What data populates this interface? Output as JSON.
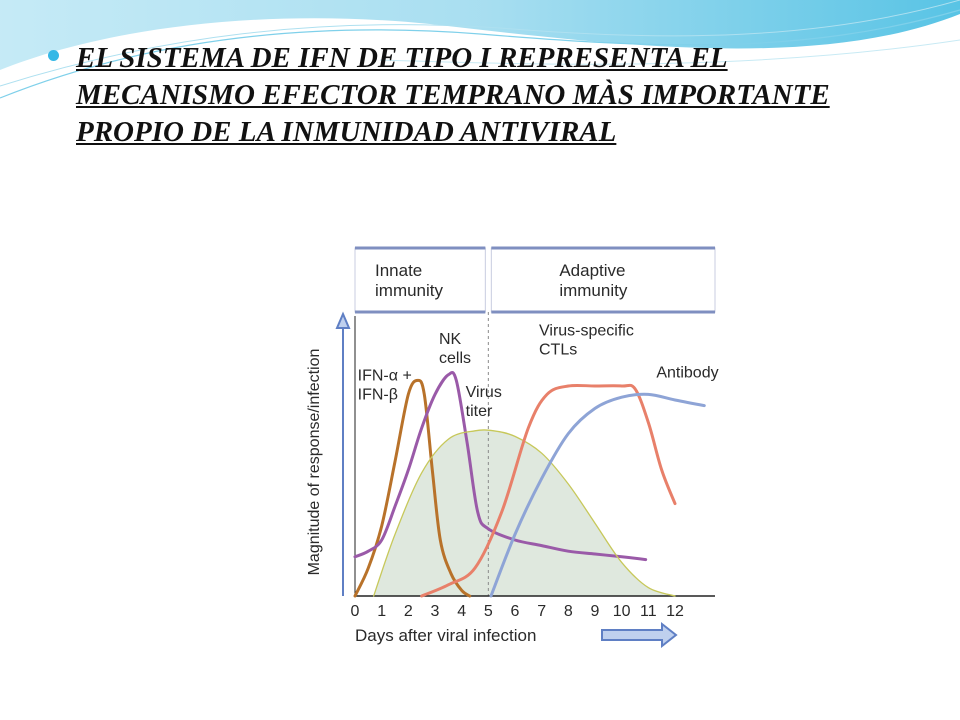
{
  "slide": {
    "bullet_text": "EL SISTEMA DE IFN DE TIPO I  REPRESENTA EL MECANISMO EFECTOR TEMPRANO MÀS IMPORTANTE PROPIO DE LA INMUNIDAD ANTIVIRAL"
  },
  "colors": {
    "ifn": "#b8722a",
    "nk": "#9a5aa8",
    "virus_fill": "#dfe8de",
    "virus_line": "#c7c85a",
    "ctl": "#e8806a",
    "antibody": "#8ea4d6",
    "header_box": "#7f8fc0",
    "axis_arrow": "#5f7fc4",
    "text": "#2a2a2a"
  },
  "chart_data": {
    "type": "line",
    "title": "",
    "xlabel": "Days after viral infection",
    "ylabel": "Magnitude of response/infection",
    "xlim": [
      0,
      13.5
    ],
    "ylim": [
      0,
      100
    ],
    "xticks": [
      "0",
      "1",
      "2",
      "3",
      "4",
      "5",
      "6",
      "7",
      "8",
      "9",
      "10",
      "11",
      "12"
    ],
    "phases": [
      {
        "name": "Innate immunity",
        "line1": "Innate",
        "line2": "immunity",
        "x_from": 0,
        "x_to": 5
      },
      {
        "name": "Adaptive immunity",
        "line1": "Adaptive",
        "line2": "immunity",
        "x_from": 5,
        "x_to": 13.5
      }
    ],
    "divider_x": 5,
    "series": [
      {
        "key": "ifn",
        "label_lines": [
          "IFN-α +",
          "IFN-β"
        ],
        "label_x": 0.1,
        "label_y": 77,
        "points": [
          [
            0,
            0
          ],
          [
            0.5,
            10
          ],
          [
            1,
            25
          ],
          [
            1.5,
            48
          ],
          [
            2,
            72
          ],
          [
            2.35,
            77
          ],
          [
            2.6,
            72
          ],
          [
            2.9,
            45
          ],
          [
            3.2,
            20
          ],
          [
            3.6,
            8
          ],
          [
            4,
            2
          ],
          [
            4.3,
            0
          ]
        ]
      },
      {
        "key": "nk",
        "label_lines": [
          "NK",
          "cells"
        ],
        "label_x": 3.15,
        "label_y": 90,
        "points": [
          [
            0,
            14
          ],
          [
            0.5,
            16
          ],
          [
            1,
            20
          ],
          [
            1.5,
            32
          ],
          [
            2,
            45
          ],
          [
            2.5,
            60
          ],
          [
            3,
            72
          ],
          [
            3.5,
            79
          ],
          [
            3.8,
            77
          ],
          [
            4.2,
            55
          ],
          [
            4.6,
            30
          ],
          [
            5,
            24
          ],
          [
            6,
            20
          ],
          [
            7,
            18
          ],
          [
            8,
            16
          ],
          [
            9,
            15
          ],
          [
            10,
            14
          ],
          [
            10.9,
            13
          ]
        ]
      },
      {
        "key": "virus",
        "label_lines": [
          "Virus",
          "titer"
        ],
        "label_x": 4.15,
        "label_y": 71,
        "fill": true,
        "points": [
          [
            0.7,
            0
          ],
          [
            1.5,
            22
          ],
          [
            2.5,
            44
          ],
          [
            3.5,
            56
          ],
          [
            4.5,
            59
          ],
          [
            5.2,
            59
          ],
          [
            6,
            57
          ],
          [
            7,
            51
          ],
          [
            8,
            40
          ],
          [
            9,
            26
          ],
          [
            10,
            12
          ],
          [
            11,
            3
          ],
          [
            12,
            0
          ]
        ]
      },
      {
        "key": "ctl",
        "label_lines": [
          "Virus-specific",
          "CTLs"
        ],
        "label_x": 6.9,
        "label_y": 93,
        "points": [
          [
            2.5,
            0
          ],
          [
            3.5,
            4
          ],
          [
            4.5,
            10
          ],
          [
            5.5,
            30
          ],
          [
            6.5,
            60
          ],
          [
            7.2,
            72
          ],
          [
            8,
            75
          ],
          [
            9,
            75
          ],
          [
            10,
            75
          ],
          [
            10.5,
            74
          ],
          [
            11,
            62
          ],
          [
            11.5,
            45
          ],
          [
            12,
            33
          ]
        ]
      },
      {
        "key": "antibody",
        "label_lines": [
          "Antibody"
        ],
        "label_x": 11.3,
        "label_y": 78,
        "points": [
          [
            5.1,
            0
          ],
          [
            6,
            22
          ],
          [
            7,
            42
          ],
          [
            8,
            58
          ],
          [
            9,
            67
          ],
          [
            10,
            71
          ],
          [
            11,
            72
          ],
          [
            12,
            70
          ],
          [
            13.1,
            68
          ]
        ]
      }
    ]
  }
}
